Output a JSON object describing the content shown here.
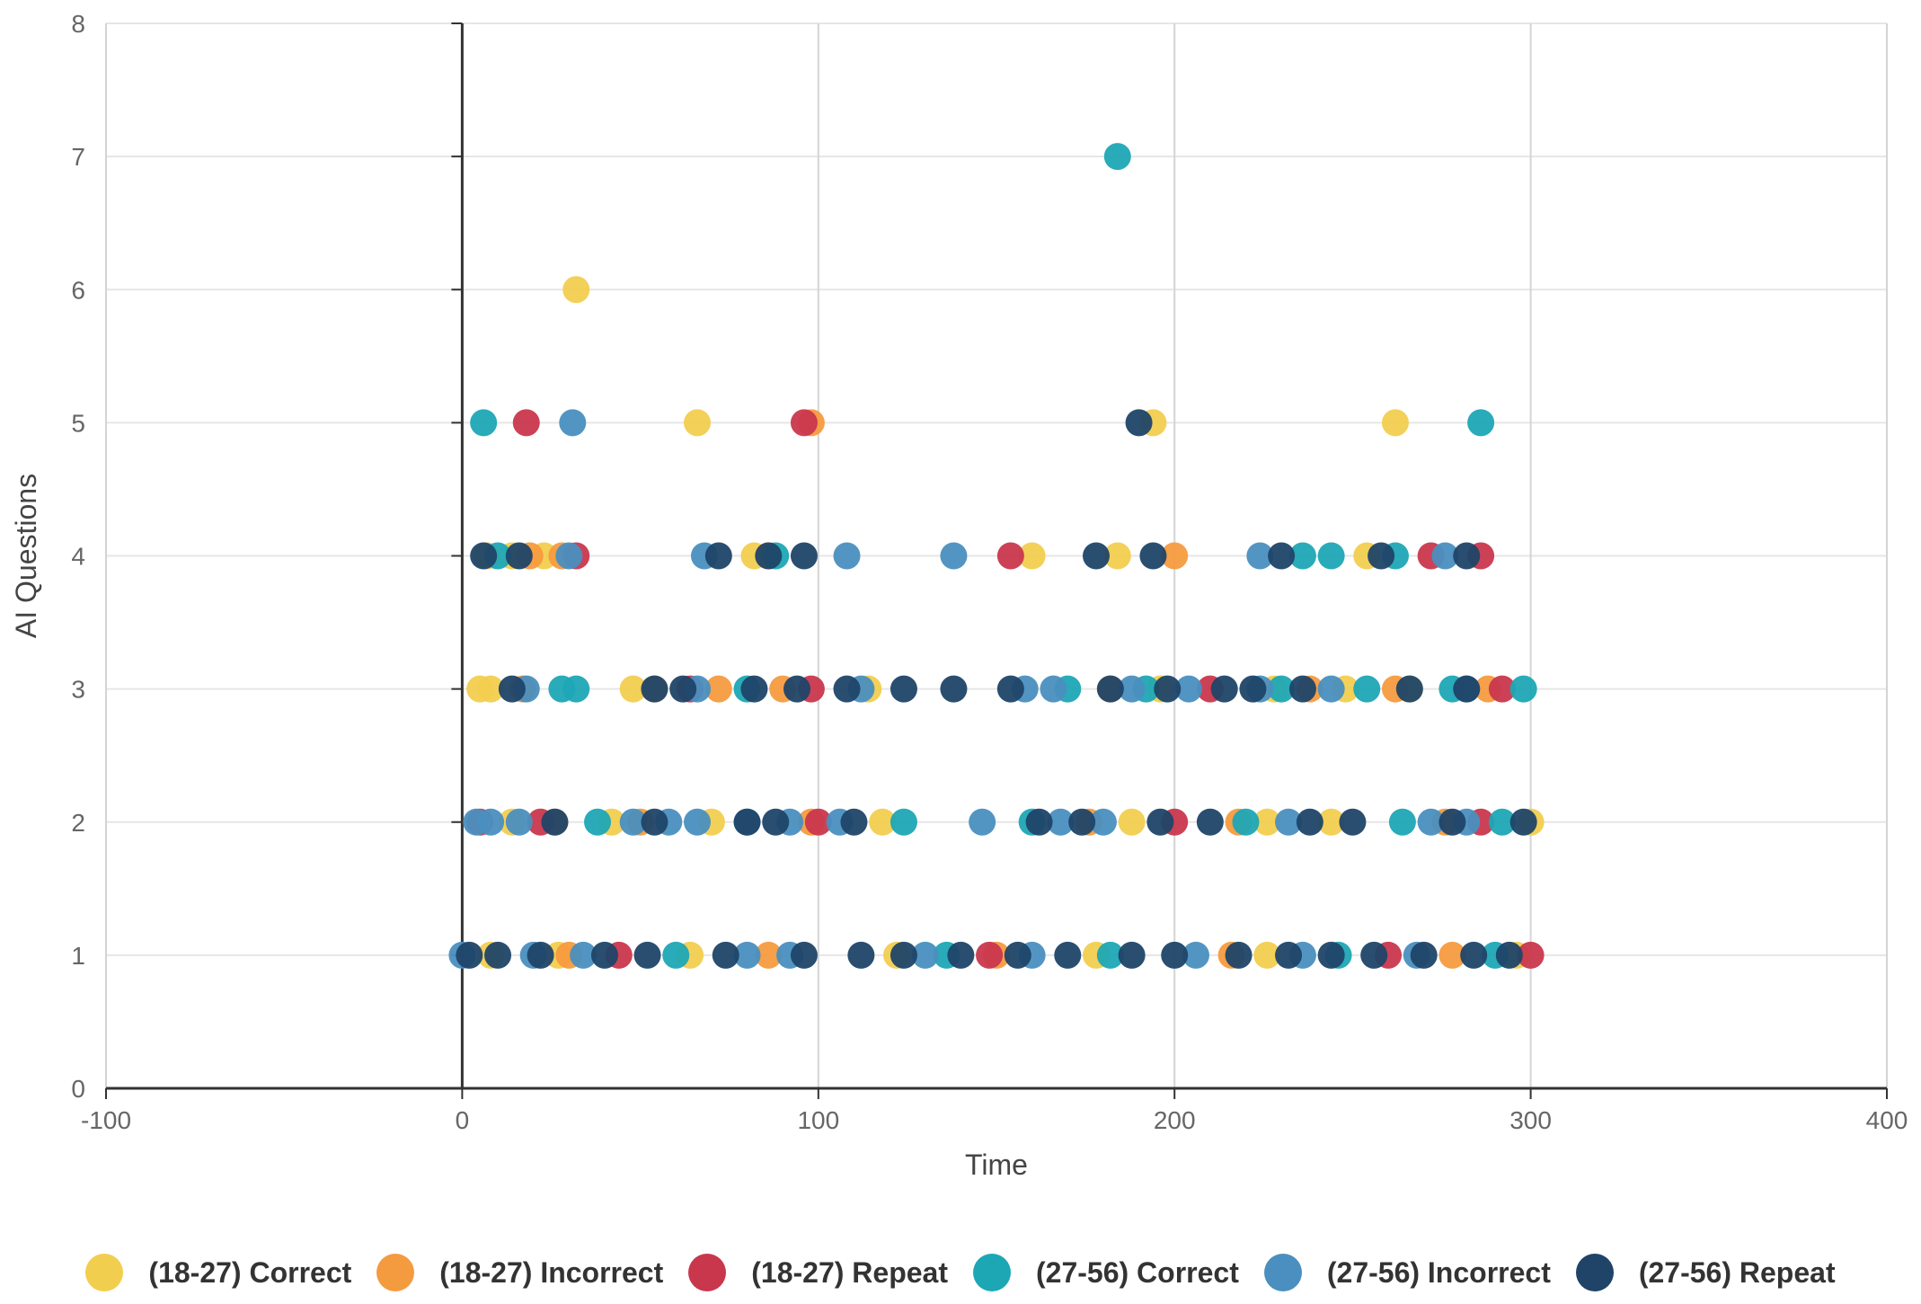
{
  "chart_data": {
    "type": "scatter",
    "title": "",
    "xlabel": "Time",
    "ylabel": "AI Questions",
    "xlim": [
      -100,
      400
    ],
    "ylim": [
      0,
      8
    ],
    "x_ticks": [
      "-100",
      "0",
      "100",
      "200",
      "300",
      "400"
    ],
    "y_ticks": [
      "0",
      "1",
      "2",
      "3",
      "4",
      "5",
      "6",
      "7",
      "8"
    ],
    "grid": true,
    "legend_position": "bottom",
    "series": [
      {
        "name": "(18-27) Correct",
        "color": "#F2CE4F",
        "points": [
          [
            32,
            6
          ],
          [
            66,
            5
          ],
          [
            194,
            5
          ],
          [
            262,
            5
          ],
          [
            7,
            4
          ],
          [
            14,
            4
          ],
          [
            23,
            4
          ],
          [
            82,
            4
          ],
          [
            160,
            4
          ],
          [
            184,
            4
          ],
          [
            254,
            4
          ],
          [
            5,
            3
          ],
          [
            8,
            3
          ],
          [
            48,
            3
          ],
          [
            114,
            3
          ],
          [
            196,
            3
          ],
          [
            228,
            3
          ],
          [
            248,
            3
          ],
          [
            266,
            3
          ],
          [
            14,
            2
          ],
          [
            42,
            2
          ],
          [
            70,
            2
          ],
          [
            118,
            2
          ],
          [
            188,
            2
          ],
          [
            226,
            2
          ],
          [
            244,
            2
          ],
          [
            300,
            2
          ],
          [
            8,
            1
          ],
          [
            27,
            1
          ],
          [
            64,
            1
          ],
          [
            122,
            1
          ],
          [
            178,
            1
          ],
          [
            226,
            1
          ],
          [
            296,
            1
          ]
        ]
      },
      {
        "name": "(18-27) Incorrect",
        "color": "#F59B3F",
        "points": [
          [
            98,
            5
          ],
          [
            19,
            4
          ],
          [
            28,
            4
          ],
          [
            86,
            4
          ],
          [
            200,
            4
          ],
          [
            17,
            3
          ],
          [
            54,
            3
          ],
          [
            72,
            3
          ],
          [
            90,
            3
          ],
          [
            182,
            3
          ],
          [
            238,
            3
          ],
          [
            262,
            3
          ],
          [
            288,
            3
          ],
          [
            26,
            2
          ],
          [
            50,
            2
          ],
          [
            98,
            2
          ],
          [
            176,
            2
          ],
          [
            218,
            2
          ],
          [
            276,
            2
          ],
          [
            30,
            1
          ],
          [
            86,
            1
          ],
          [
            150,
            1
          ],
          [
            216,
            1
          ],
          [
            278,
            1
          ]
        ]
      },
      {
        "name": "(18-27) Repeat",
        "color": "#C9374D",
        "points": [
          [
            18,
            5
          ],
          [
            96,
            5
          ],
          [
            32,
            4
          ],
          [
            154,
            4
          ],
          [
            272,
            4
          ],
          [
            286,
            4
          ],
          [
            64,
            3
          ],
          [
            98,
            3
          ],
          [
            210,
            3
          ],
          [
            292,
            3
          ],
          [
            5,
            2
          ],
          [
            22,
            2
          ],
          [
            100,
            2
          ],
          [
            200,
            2
          ],
          [
            286,
            2
          ],
          [
            44,
            1
          ],
          [
            148,
            1
          ],
          [
            260,
            1
          ],
          [
            300,
            1
          ]
        ]
      },
      {
        "name": "(27-56) Correct",
        "color": "#1DA7B5",
        "points": [
          [
            184,
            7
          ],
          [
            6,
            5
          ],
          [
            286,
            5
          ],
          [
            10,
            4
          ],
          [
            88,
            4
          ],
          [
            236,
            4
          ],
          [
            244,
            4
          ],
          [
            262,
            4
          ],
          [
            28,
            3
          ],
          [
            32,
            3
          ],
          [
            80,
            3
          ],
          [
            170,
            3
          ],
          [
            192,
            3
          ],
          [
            230,
            3
          ],
          [
            254,
            3
          ],
          [
            278,
            3
          ],
          [
            298,
            3
          ],
          [
            38,
            2
          ],
          [
            124,
            2
          ],
          [
            160,
            2
          ],
          [
            220,
            2
          ],
          [
            264,
            2
          ],
          [
            292,
            2
          ],
          [
            60,
            1
          ],
          [
            136,
            1
          ],
          [
            182,
            1
          ],
          [
            246,
            1
          ],
          [
            290,
            1
          ]
        ]
      },
      {
        "name": "(27-56) Incorrect",
        "color": "#4A8FBF",
        "points": [
          [
            31,
            5
          ],
          [
            30,
            4
          ],
          [
            68,
            4
          ],
          [
            108,
            4
          ],
          [
            138,
            4
          ],
          [
            224,
            4
          ],
          [
            276,
            4
          ],
          [
            18,
            3
          ],
          [
            66,
            3
          ],
          [
            112,
            3
          ],
          [
            158,
            3
          ],
          [
            166,
            3
          ],
          [
            188,
            3
          ],
          [
            204,
            3
          ],
          [
            224,
            3
          ],
          [
            244,
            3
          ],
          [
            282,
            3
          ],
          [
            4,
            2
          ],
          [
            8,
            2
          ],
          [
            16,
            2
          ],
          [
            48,
            2
          ],
          [
            58,
            2
          ],
          [
            66,
            2
          ],
          [
            80,
            2
          ],
          [
            92,
            2
          ],
          [
            106,
            2
          ],
          [
            146,
            2
          ],
          [
            168,
            2
          ],
          [
            180,
            2
          ],
          [
            232,
            2
          ],
          [
            272,
            2
          ],
          [
            282,
            2
          ],
          [
            0,
            1
          ],
          [
            20,
            1
          ],
          [
            34,
            1
          ],
          [
            80,
            1
          ],
          [
            92,
            1
          ],
          [
            130,
            1
          ],
          [
            160,
            1
          ],
          [
            206,
            1
          ],
          [
            236,
            1
          ],
          [
            268,
            1
          ]
        ]
      },
      {
        "name": "(27-56) Repeat",
        "color": "#1F4468",
        "points": [
          [
            190,
            5
          ],
          [
            6,
            4
          ],
          [
            16,
            4
          ],
          [
            72,
            4
          ],
          [
            86,
            4
          ],
          [
            96,
            4
          ],
          [
            178,
            4
          ],
          [
            194,
            4
          ],
          [
            230,
            4
          ],
          [
            258,
            4
          ],
          [
            282,
            4
          ],
          [
            14,
            3
          ],
          [
            54,
            3
          ],
          [
            62,
            3
          ],
          [
            82,
            3
          ],
          [
            94,
            3
          ],
          [
            108,
            3
          ],
          [
            124,
            3
          ],
          [
            138,
            3
          ],
          [
            154,
            3
          ],
          [
            182,
            3
          ],
          [
            198,
            3
          ],
          [
            214,
            3
          ],
          [
            222,
            3
          ],
          [
            236,
            3
          ],
          [
            266,
            3
          ],
          [
            282,
            3
          ],
          [
            26,
            2
          ],
          [
            54,
            2
          ],
          [
            80,
            2
          ],
          [
            88,
            2
          ],
          [
            110,
            2
          ],
          [
            162,
            2
          ],
          [
            174,
            2
          ],
          [
            196,
            2
          ],
          [
            210,
            2
          ],
          [
            238,
            2
          ],
          [
            250,
            2
          ],
          [
            278,
            2
          ],
          [
            298,
            2
          ],
          [
            2,
            1
          ],
          [
            10,
            1
          ],
          [
            22,
            1
          ],
          [
            40,
            1
          ],
          [
            52,
            1
          ],
          [
            74,
            1
          ],
          [
            96,
            1
          ],
          [
            112,
            1
          ],
          [
            124,
            1
          ],
          [
            140,
            1
          ],
          [
            156,
            1
          ],
          [
            170,
            1
          ],
          [
            188,
            1
          ],
          [
            200,
            1
          ],
          [
            218,
            1
          ],
          [
            232,
            1
          ],
          [
            244,
            1
          ],
          [
            256,
            1
          ],
          [
            270,
            1
          ],
          [
            284,
            1
          ],
          [
            294,
            1
          ]
        ]
      }
    ]
  }
}
